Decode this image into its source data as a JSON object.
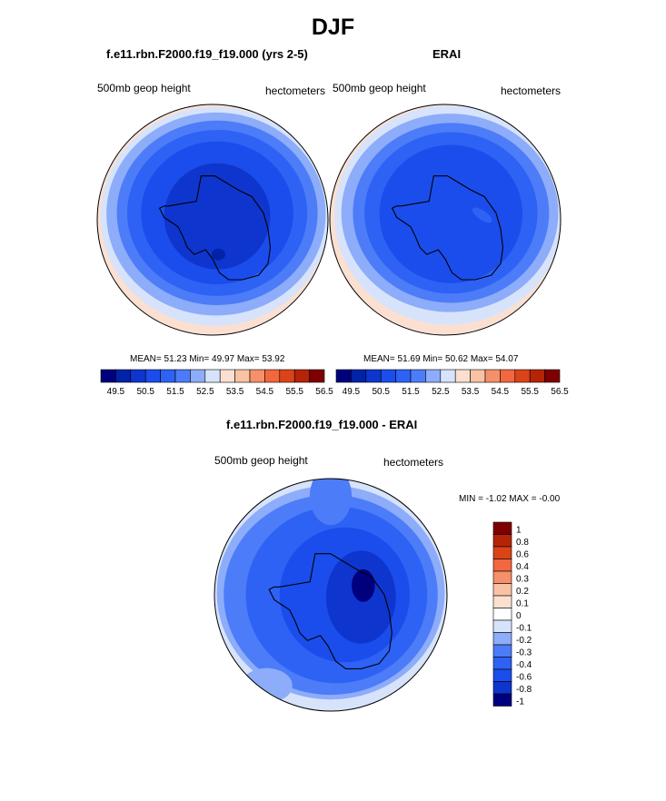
{
  "title": "DJF",
  "panels": [
    {
      "title": "f.e11.rbn.F2000.f19_f19.000 (yrs 2-5)",
      "left_label": "500mb geop height",
      "right_label": "hectometers",
      "stats": "MEAN=  51.23  Min=  49.97  Max=  53.92"
    },
    {
      "title": "ERAI",
      "left_label": "500mb geop height",
      "right_label": "hectometers",
      "stats": "MEAN=  51.69  Min=  50.62  Max=  54.07"
    },
    {
      "title": "f.e11.rbn.F2000.f19_f19.000 - ERAI",
      "left_label": "500mb geop height",
      "right_label": "hectometers",
      "minmax": "MIN =  -1.02 MAX =  -0.00"
    }
  ],
  "chart_data": [
    {
      "type": "heatmap",
      "projection": "south-polar stereographic",
      "title": "f.e11.rbn.F2000.f19_f19.000 (yrs 2-5)",
      "variable": "500mb geop height",
      "units": "hectometers",
      "mean": 51.23,
      "min": 49.97,
      "max": 53.92,
      "colorbar_levels": [
        49.5,
        50.0,
        50.5,
        51.0,
        51.5,
        52.0,
        52.5,
        53.0,
        53.5,
        54.0,
        54.5,
        55.0,
        55.5,
        56.0,
        56.5
      ],
      "colorbar_tick_labels": [
        "49.5",
        "50.5",
        "51.5",
        "52.5",
        "53.5",
        "54.5",
        "55.5",
        "56.5"
      ]
    },
    {
      "type": "heatmap",
      "projection": "south-polar stereographic",
      "title": "ERAI",
      "variable": "500mb geop height",
      "units": "hectometers",
      "mean": 51.69,
      "min": 50.62,
      "max": 54.07,
      "colorbar_levels": [
        49.5,
        50.0,
        50.5,
        51.0,
        51.5,
        52.0,
        52.5,
        53.0,
        53.5,
        54.0,
        54.5,
        55.0,
        55.5,
        56.0,
        56.5
      ],
      "colorbar_tick_labels": [
        "49.5",
        "50.5",
        "51.5",
        "52.5",
        "53.5",
        "54.5",
        "55.5",
        "56.5"
      ]
    },
    {
      "type": "heatmap",
      "projection": "south-polar stereographic",
      "title": "f.e11.rbn.F2000.f19_f19.000 - ERAI",
      "variable": "500mb geop height",
      "units": "hectometers",
      "min": -1.02,
      "max": -0.0,
      "colorbar_tick_labels": [
        "1",
        "0.8",
        "0.6",
        "0.4",
        "0.3",
        "0.2",
        "0.1",
        "0",
        "-0.1",
        "-0.2",
        "-0.3",
        "-0.4",
        "-0.6",
        "-0.8",
        "-1"
      ]
    }
  ],
  "colors": {
    "seq": [
      "#00007F",
      "#0023A8",
      "#0E36CE",
      "#1B4DEC",
      "#2E62F5",
      "#4C7CF7",
      "#8DACF9",
      "#D6E3FB",
      "#FBE0D2",
      "#F9C2A4",
      "#F6906A",
      "#F2673F",
      "#DB4418",
      "#B62408",
      "#7F0000"
    ],
    "diff": [
      "#7F0000",
      "#B62408",
      "#DB4418",
      "#F2673F",
      "#F6906A",
      "#F9C2A4",
      "#FBE0D2",
      "#FFFFFF",
      "#D6E3FB",
      "#8DACF9",
      "#4C7CF7",
      "#2E62F5",
      "#1B4DEC",
      "#0E36CE",
      "#00007F"
    ],
    "continent": "#000000"
  }
}
